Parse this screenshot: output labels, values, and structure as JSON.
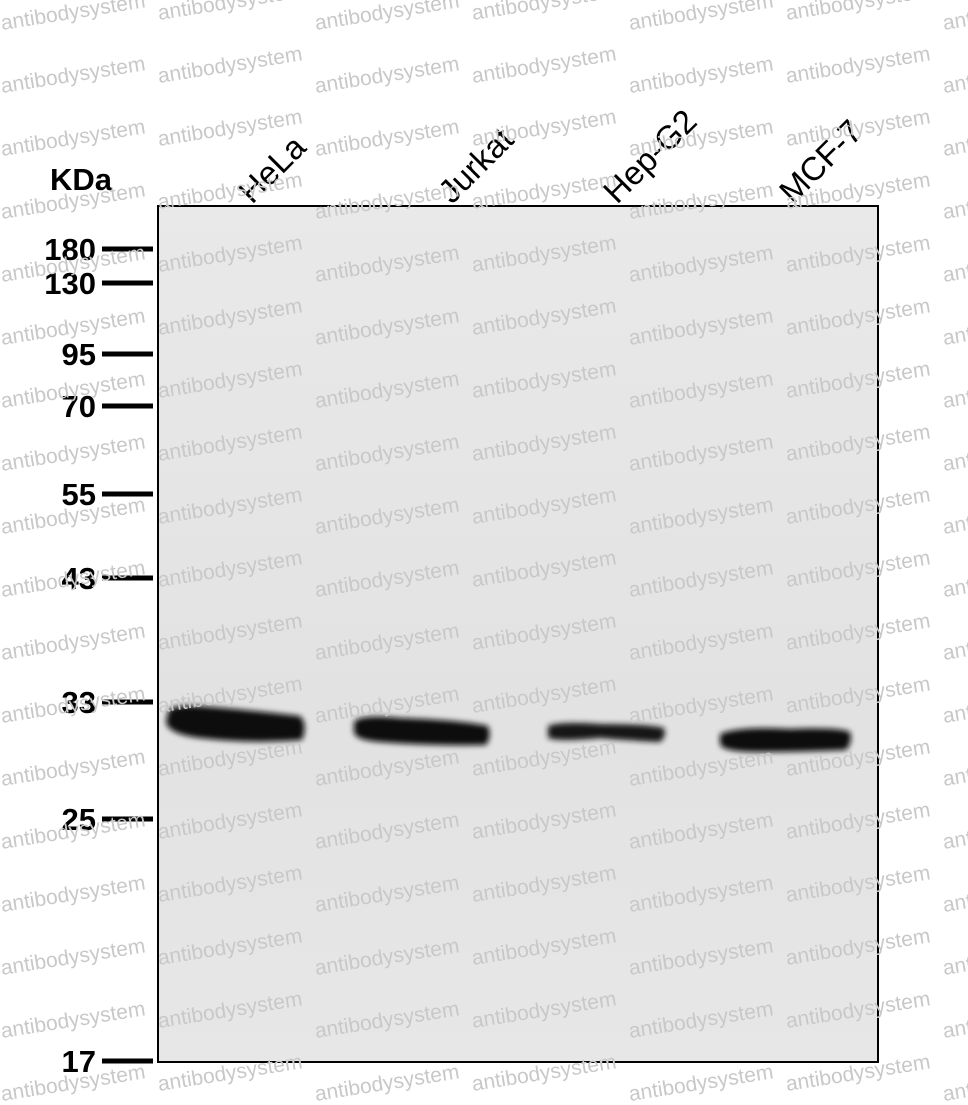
{
  "unit_label": "KDa",
  "lanes": [
    "HeLa",
    "Jurkat",
    "Hep-G2",
    "MCF-7"
  ],
  "markers": [
    180,
    130,
    95,
    70,
    55,
    43,
    33,
    25,
    17
  ],
  "watermark": "antibodysystem"
}
